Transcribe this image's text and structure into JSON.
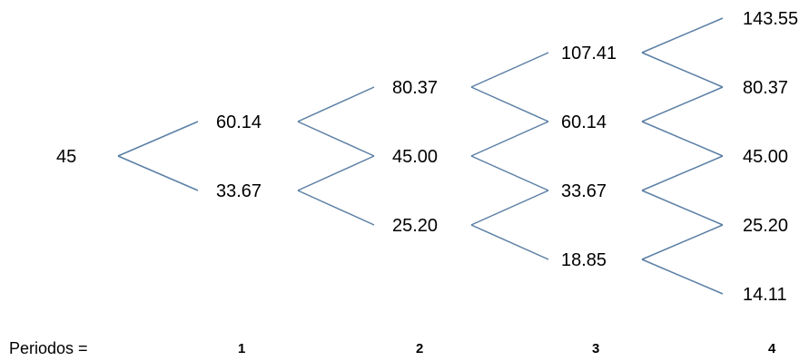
{
  "tree": {
    "levels": [
      [
        "45"
      ],
      [
        "60.14",
        "33.67"
      ],
      [
        "80.37",
        "45.00",
        "25.20"
      ],
      [
        "107.41",
        "60.14",
        "33.67",
        "18.85"
      ],
      [
        "143.55",
        "80.37",
        "45.00",
        "25.20",
        "14.11"
      ]
    ]
  },
  "periods": {
    "label": "Periodos =",
    "numbers": [
      "1",
      "2",
      "3",
      "4"
    ]
  },
  "colors": {
    "edge": "#5b7fa5",
    "text": "#000000"
  }
}
